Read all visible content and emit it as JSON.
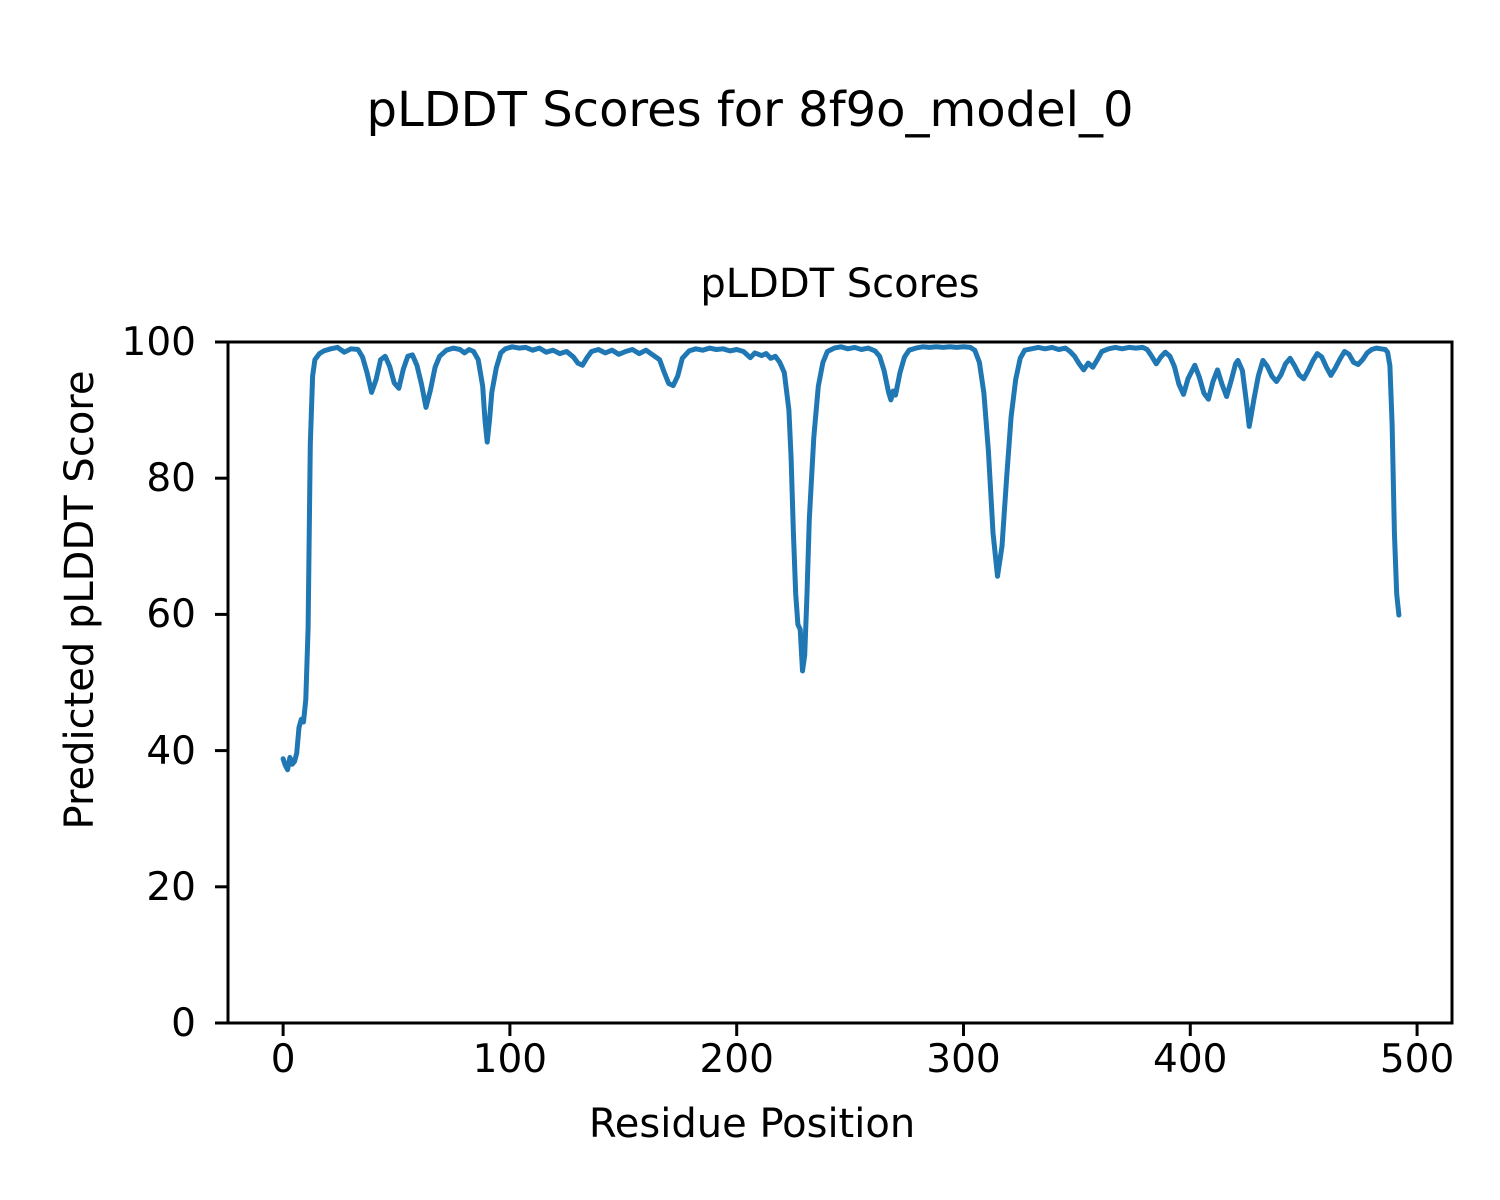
{
  "figure": {
    "suptitle": "pLDDT Scores for 8f9o_model_0",
    "background": "#ffffff",
    "text_color": "#000000",
    "spine_color": "#000000"
  },
  "chart_data": {
    "type": "line",
    "title": "pLDDT Scores",
    "suptitle": "pLDDT Scores for 8f9o_model_0",
    "xlabel": "Residue Position",
    "ylabel": "Predicted pLDDT Score",
    "xlim": [
      -24.3,
      515.4
    ],
    "ylim": [
      0,
      100
    ],
    "x_ticks": [
      0,
      100,
      200,
      300,
      400,
      500
    ],
    "y_ticks": [
      0,
      20,
      40,
      60,
      80,
      100
    ],
    "grid": false,
    "legend": null,
    "line_color": "#1f77b4",
    "line_width": 5,
    "series": [
      {
        "name": "pLDDT",
        "points": [
          [
            0,
            38.8
          ],
          [
            1,
            37.8
          ],
          [
            2,
            37.2
          ],
          [
            3,
            39.0
          ],
          [
            4,
            38.0
          ],
          [
            5,
            38.4
          ],
          [
            6,
            39.6
          ],
          [
            7,
            43.4
          ],
          [
            8,
            44.6
          ],
          [
            9,
            44.2
          ],
          [
            10,
            47.5
          ],
          [
            11,
            58
          ],
          [
            12,
            85
          ],
          [
            13,
            95
          ],
          [
            14,
            97.4
          ],
          [
            16,
            98.3
          ],
          [
            18,
            98.7
          ],
          [
            21,
            99.0
          ],
          [
            24,
            99.2
          ],
          [
            27,
            98.5
          ],
          [
            30,
            99.0
          ],
          [
            33,
            98.9
          ],
          [
            35,
            97.8
          ],
          [
            37,
            95.5
          ],
          [
            39,
            92.6
          ],
          [
            41,
            94.5
          ],
          [
            43,
            97.4
          ],
          [
            45,
            97.9
          ],
          [
            47,
            96.4
          ],
          [
            49,
            94.0
          ],
          [
            51,
            93.2
          ],
          [
            53,
            96.0
          ],
          [
            55,
            97.9
          ],
          [
            57,
            98.1
          ],
          [
            59,
            96.6
          ],
          [
            61,
            93.8
          ],
          [
            63,
            90.4
          ],
          [
            65,
            93.0
          ],
          [
            67,
            96.3
          ],
          [
            69,
            97.9
          ],
          [
            72,
            98.8
          ],
          [
            75,
            99.1
          ],
          [
            78,
            98.9
          ],
          [
            80,
            98.4
          ],
          [
            82,
            98.9
          ],
          [
            84,
            98.6
          ],
          [
            86,
            97.4
          ],
          [
            88,
            93.5
          ],
          [
            89,
            88.5
          ],
          [
            90,
            85.3
          ],
          [
            91,
            88.5
          ],
          [
            92,
            92.6
          ],
          [
            94,
            96.2
          ],
          [
            96,
            98.4
          ],
          [
            98,
            99.0
          ],
          [
            101,
            99.3
          ],
          [
            104,
            99.1
          ],
          [
            107,
            99.2
          ],
          [
            110,
            98.8
          ],
          [
            113,
            99.1
          ],
          [
            116,
            98.5
          ],
          [
            119,
            98.8
          ],
          [
            122,
            98.3
          ],
          [
            125,
            98.6
          ],
          [
            128,
            97.8
          ],
          [
            130,
            96.9
          ],
          [
            132,
            96.6
          ],
          [
            134,
            97.7
          ],
          [
            136,
            98.6
          ],
          [
            139,
            98.9
          ],
          [
            142,
            98.4
          ],
          [
            145,
            98.8
          ],
          [
            148,
            98.2
          ],
          [
            151,
            98.6
          ],
          [
            154,
            98.9
          ],
          [
            157,
            98.3
          ],
          [
            160,
            98.8
          ],
          [
            163,
            98.1
          ],
          [
            166,
            97.4
          ],
          [
            168,
            95.6
          ],
          [
            170,
            93.9
          ],
          [
            172,
            93.6
          ],
          [
            174,
            95.0
          ],
          [
            176,
            97.6
          ],
          [
            179,
            98.7
          ],
          [
            182,
            99.0
          ],
          [
            185,
            98.8
          ],
          [
            188,
            99.1
          ],
          [
            191,
            98.9
          ],
          [
            194,
            99.0
          ],
          [
            197,
            98.7
          ],
          [
            200,
            98.9
          ],
          [
            203,
            98.6
          ],
          [
            206,
            97.7
          ],
          [
            208,
            98.4
          ],
          [
            211,
            98.0
          ],
          [
            213,
            98.3
          ],
          [
            215,
            97.6
          ],
          [
            217,
            97.9
          ],
          [
            219,
            97.0
          ],
          [
            221,
            95.5
          ],
          [
            223,
            90.0
          ],
          [
            224,
            83
          ],
          [
            225,
            72
          ],
          [
            226,
            63
          ],
          [
            227,
            58.5
          ],
          [
            228,
            57.8
          ],
          [
            229,
            51.7
          ],
          [
            230,
            54
          ],
          [
            231,
            63
          ],
          [
            232,
            74
          ],
          [
            234,
            86
          ],
          [
            236,
            93.5
          ],
          [
            238,
            97.0
          ],
          [
            240,
            98.6
          ],
          [
            243,
            99.1
          ],
          [
            246,
            99.3
          ],
          [
            249,
            99.0
          ],
          [
            252,
            99.2
          ],
          [
            255,
            98.9
          ],
          [
            258,
            99.1
          ],
          [
            261,
            98.7
          ],
          [
            263,
            97.9
          ],
          [
            265,
            95.8
          ],
          [
            267,
            92.6
          ],
          [
            268,
            91.5
          ],
          [
            269,
            92.8
          ],
          [
            270,
            92.2
          ],
          [
            272,
            95.5
          ],
          [
            274,
            97.8
          ],
          [
            276,
            98.8
          ],
          [
            279,
            99.1
          ],
          [
            282,
            99.3
          ],
          [
            285,
            99.2
          ],
          [
            288,
            99.3
          ],
          [
            291,
            99.2
          ],
          [
            294,
            99.3
          ],
          [
            297,
            99.2
          ],
          [
            300,
            99.3
          ],
          [
            303,
            99.2
          ],
          [
            305,
            98.8
          ],
          [
            307,
            97.0
          ],
          [
            309,
            92.5
          ],
          [
            311,
            84
          ],
          [
            313,
            72
          ],
          [
            315,
            65.6
          ],
          [
            317,
            70
          ],
          [
            319,
            80
          ],
          [
            321,
            89
          ],
          [
            323,
            94.5
          ],
          [
            325,
            97.6
          ],
          [
            327,
            98.8
          ],
          [
            330,
            99.0
          ],
          [
            333,
            99.2
          ],
          [
            336,
            99.0
          ],
          [
            339,
            99.2
          ],
          [
            342,
            98.9
          ],
          [
            345,
            99.1
          ],
          [
            347,
            98.6
          ],
          [
            349,
            97.9
          ],
          [
            351,
            96.8
          ],
          [
            353,
            95.9
          ],
          [
            355,
            96.9
          ],
          [
            357,
            96.3
          ],
          [
            359,
            97.4
          ],
          [
            361,
            98.6
          ],
          [
            364,
            99.0
          ],
          [
            367,
            99.2
          ],
          [
            370,
            99.0
          ],
          [
            373,
            99.2
          ],
          [
            376,
            99.1
          ],
          [
            379,
            99.2
          ],
          [
            381,
            98.9
          ],
          [
            383,
            97.9
          ],
          [
            385,
            96.8
          ],
          [
            387,
            97.8
          ],
          [
            389,
            98.5
          ],
          [
            391,
            97.9
          ],
          [
            393,
            96.4
          ],
          [
            395,
            93.8
          ],
          [
            397,
            92.3
          ],
          [
            399,
            94.6
          ],
          [
            402,
            96.6
          ],
          [
            404,
            94.8
          ],
          [
            406,
            92.5
          ],
          [
            408,
            91.6
          ],
          [
            410,
            94.2
          ],
          [
            412,
            95.9
          ],
          [
            414,
            93.8
          ],
          [
            416,
            92.0
          ],
          [
            418,
            94.3
          ],
          [
            420,
            96.8
          ],
          [
            421,
            97.3
          ],
          [
            423,
            95.8
          ],
          [
            425,
            90.5
          ],
          [
            426,
            87.6
          ],
          [
            427,
            89.5
          ],
          [
            428,
            91.5
          ],
          [
            430,
            95.0
          ],
          [
            432,
            97.3
          ],
          [
            434,
            96.4
          ],
          [
            436,
            95.0
          ],
          [
            438,
            94.2
          ],
          [
            440,
            95.2
          ],
          [
            442,
            96.8
          ],
          [
            444,
            97.6
          ],
          [
            446,
            96.5
          ],
          [
            448,
            95.2
          ],
          [
            450,
            94.6
          ],
          [
            452,
            95.8
          ],
          [
            454,
            97.2
          ],
          [
            456,
            98.3
          ],
          [
            458,
            97.8
          ],
          [
            460,
            96.3
          ],
          [
            462,
            95.1
          ],
          [
            464,
            96.2
          ],
          [
            466,
            97.5
          ],
          [
            468,
            98.6
          ],
          [
            470,
            98.2
          ],
          [
            472,
            97.0
          ],
          [
            474,
            96.7
          ],
          [
            476,
            97.4
          ],
          [
            478,
            98.4
          ],
          [
            480,
            98.9
          ],
          [
            482,
            99.1
          ],
          [
            484,
            99.0
          ],
          [
            486,
            98.9
          ],
          [
            487,
            98.5
          ],
          [
            488,
            96.5
          ],
          [
            489,
            88
          ],
          [
            490,
            72
          ],
          [
            491,
            63
          ],
          [
            492,
            59.9
          ]
        ]
      }
    ]
  }
}
